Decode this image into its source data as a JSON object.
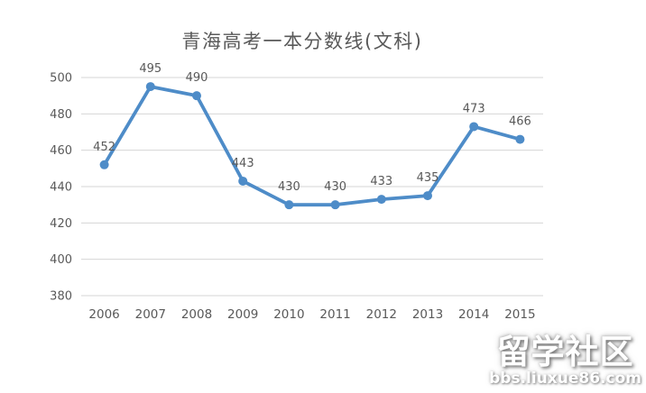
{
  "chart_data": {
    "type": "line",
    "title": "青海高考一本分数线(文科)",
    "categories": [
      "2006",
      "2007",
      "2008",
      "2009",
      "2010",
      "2011",
      "2012",
      "2013",
      "2014",
      "2015"
    ],
    "values": [
      452,
      495,
      490,
      443,
      430,
      430,
      433,
      435,
      473,
      466
    ],
    "xlabel": "",
    "ylabel": "",
    "ylim": [
      380,
      500
    ],
    "ytick_step": 20,
    "yticks": [
      380,
      400,
      420,
      440,
      460,
      480,
      500
    ],
    "grid": "horizontal",
    "legend_position": "none",
    "data_labels": true,
    "colors": {
      "line": "#4E8CC8",
      "marker": "#4E8CC8",
      "grid": "#D6D6D6",
      "tick_label": "#595959",
      "data_label": "#595959",
      "title": "#595959",
      "background": "#FFFFFF"
    }
  },
  "watermark": {
    "line1": "留学社区",
    "line2": "bbs.liuxue86.com"
  }
}
